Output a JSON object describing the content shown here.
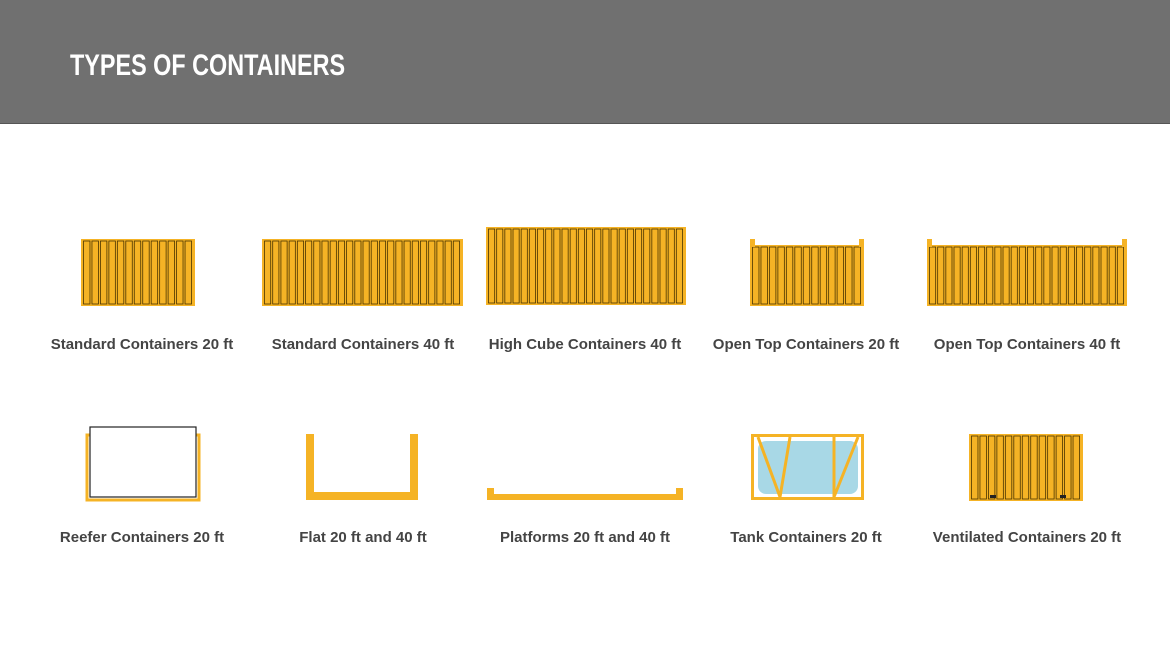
{
  "header": {
    "title": "TYPES OF CONTAINERS"
  },
  "containers": [
    {
      "label": "Standard Containers 20 ft"
    },
    {
      "label": "Standard Containers 40 ft"
    },
    {
      "label": "High Cube Containers 40 ft"
    },
    {
      "label": "Open Top Containers 20 ft"
    },
    {
      "label": "Open Top Containers 40 ft"
    },
    {
      "label": "Reefer Containers 20 ft"
    },
    {
      "label": "Flat 20 ft and 40 ft"
    },
    {
      "label": "Platforms 20 ft and 40 ft"
    },
    {
      "label": "Tank Containers 20 ft"
    },
    {
      "label": "Ventilated Containers 20 ft"
    }
  ]
}
